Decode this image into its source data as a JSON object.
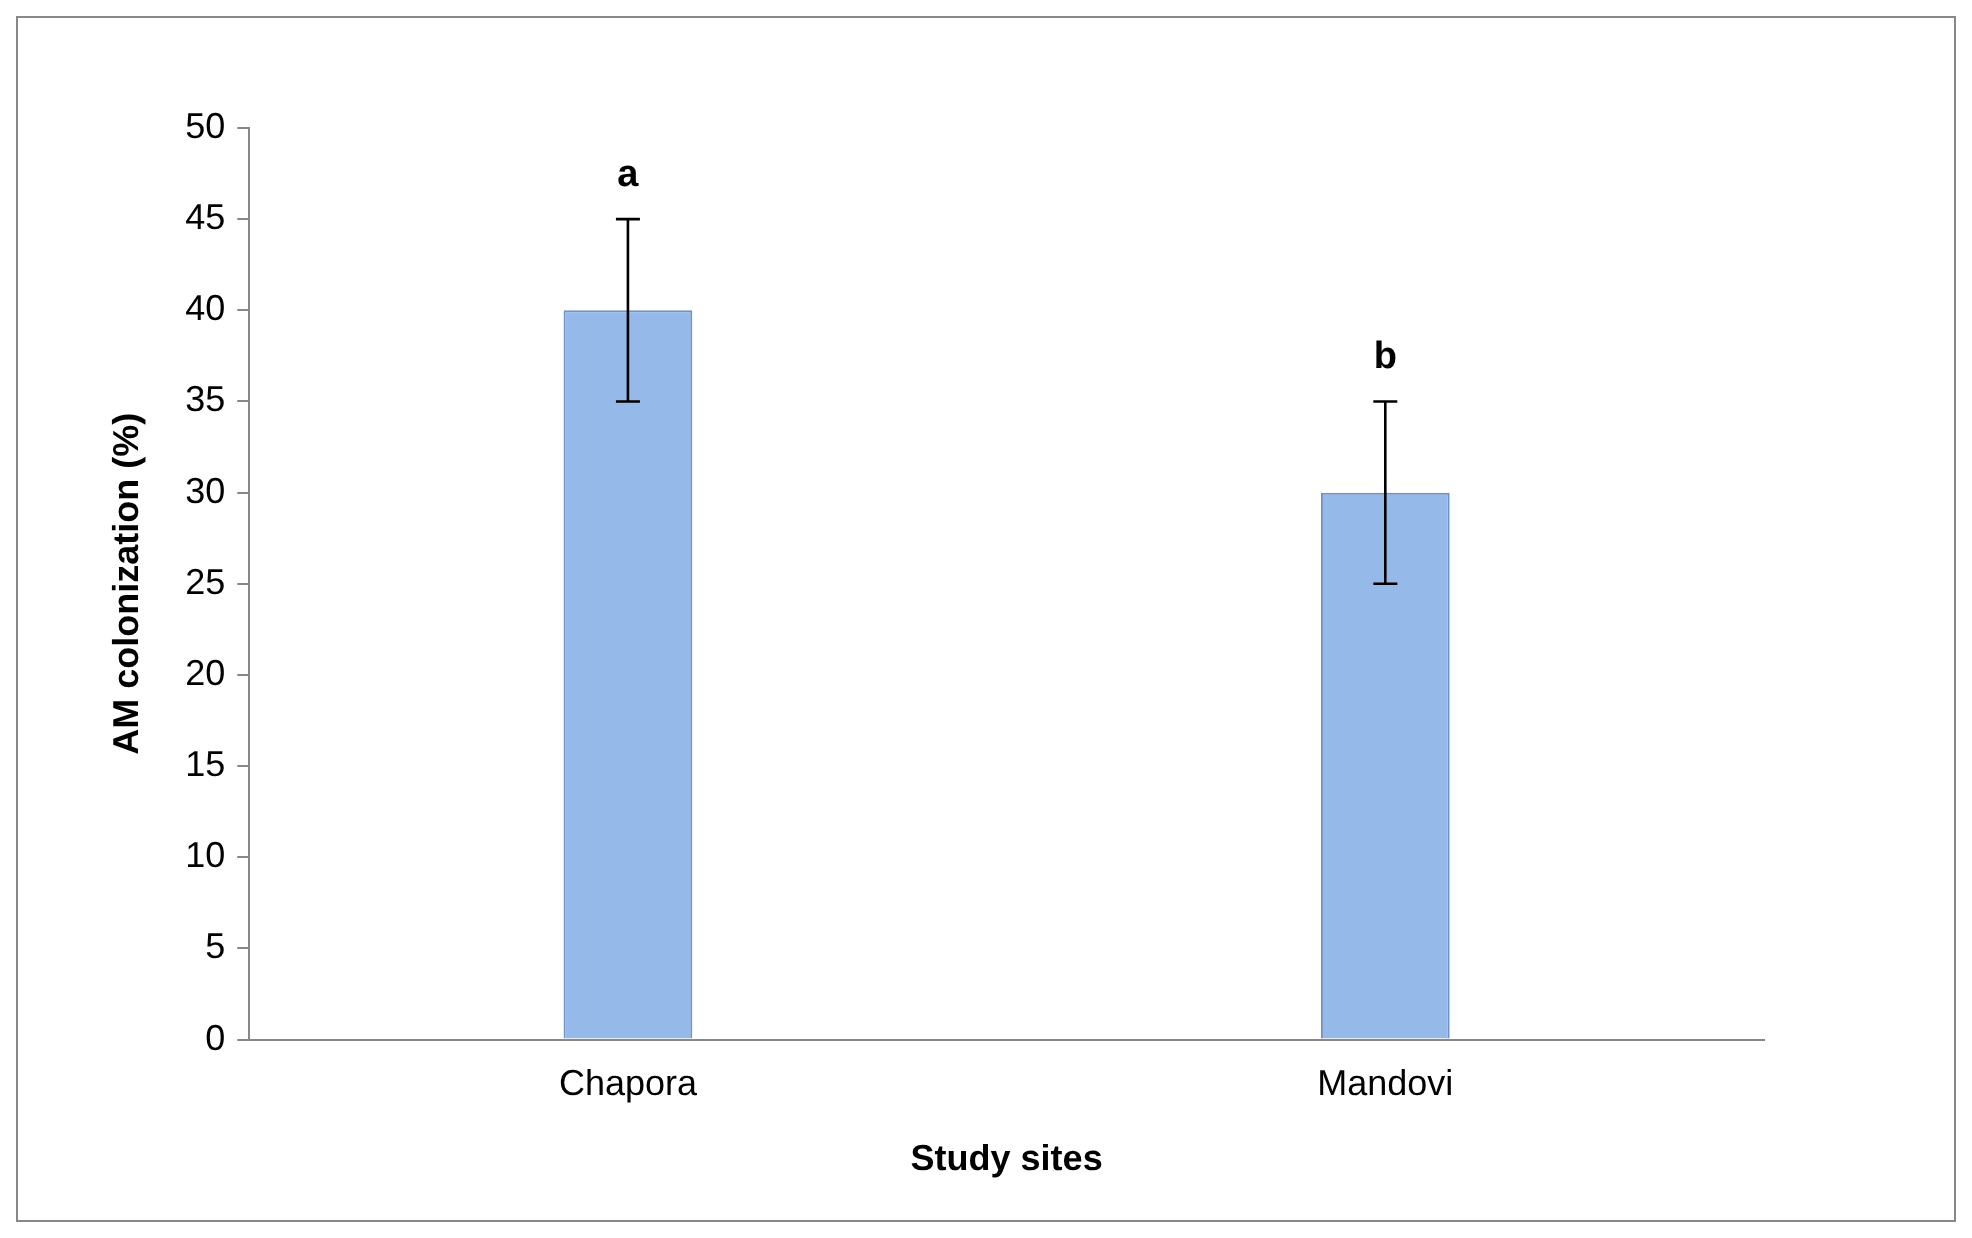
{
  "chart_data": {
    "type": "bar",
    "xlabel": "Study sites",
    "ylabel": "AM colonization (%)",
    "categories": [
      "Chapora",
      "Mandovi"
    ],
    "values": [
      40,
      30
    ],
    "errors": [
      5,
      5
    ],
    "color": "#95b9e8",
    "ylim": [
      0,
      50
    ],
    "yticks": [
      0,
      5,
      10,
      15,
      20,
      25,
      30,
      35,
      40,
      45,
      50
    ],
    "grid": false,
    "legend": false,
    "annotations": [
      "a",
      "b"
    ]
  }
}
